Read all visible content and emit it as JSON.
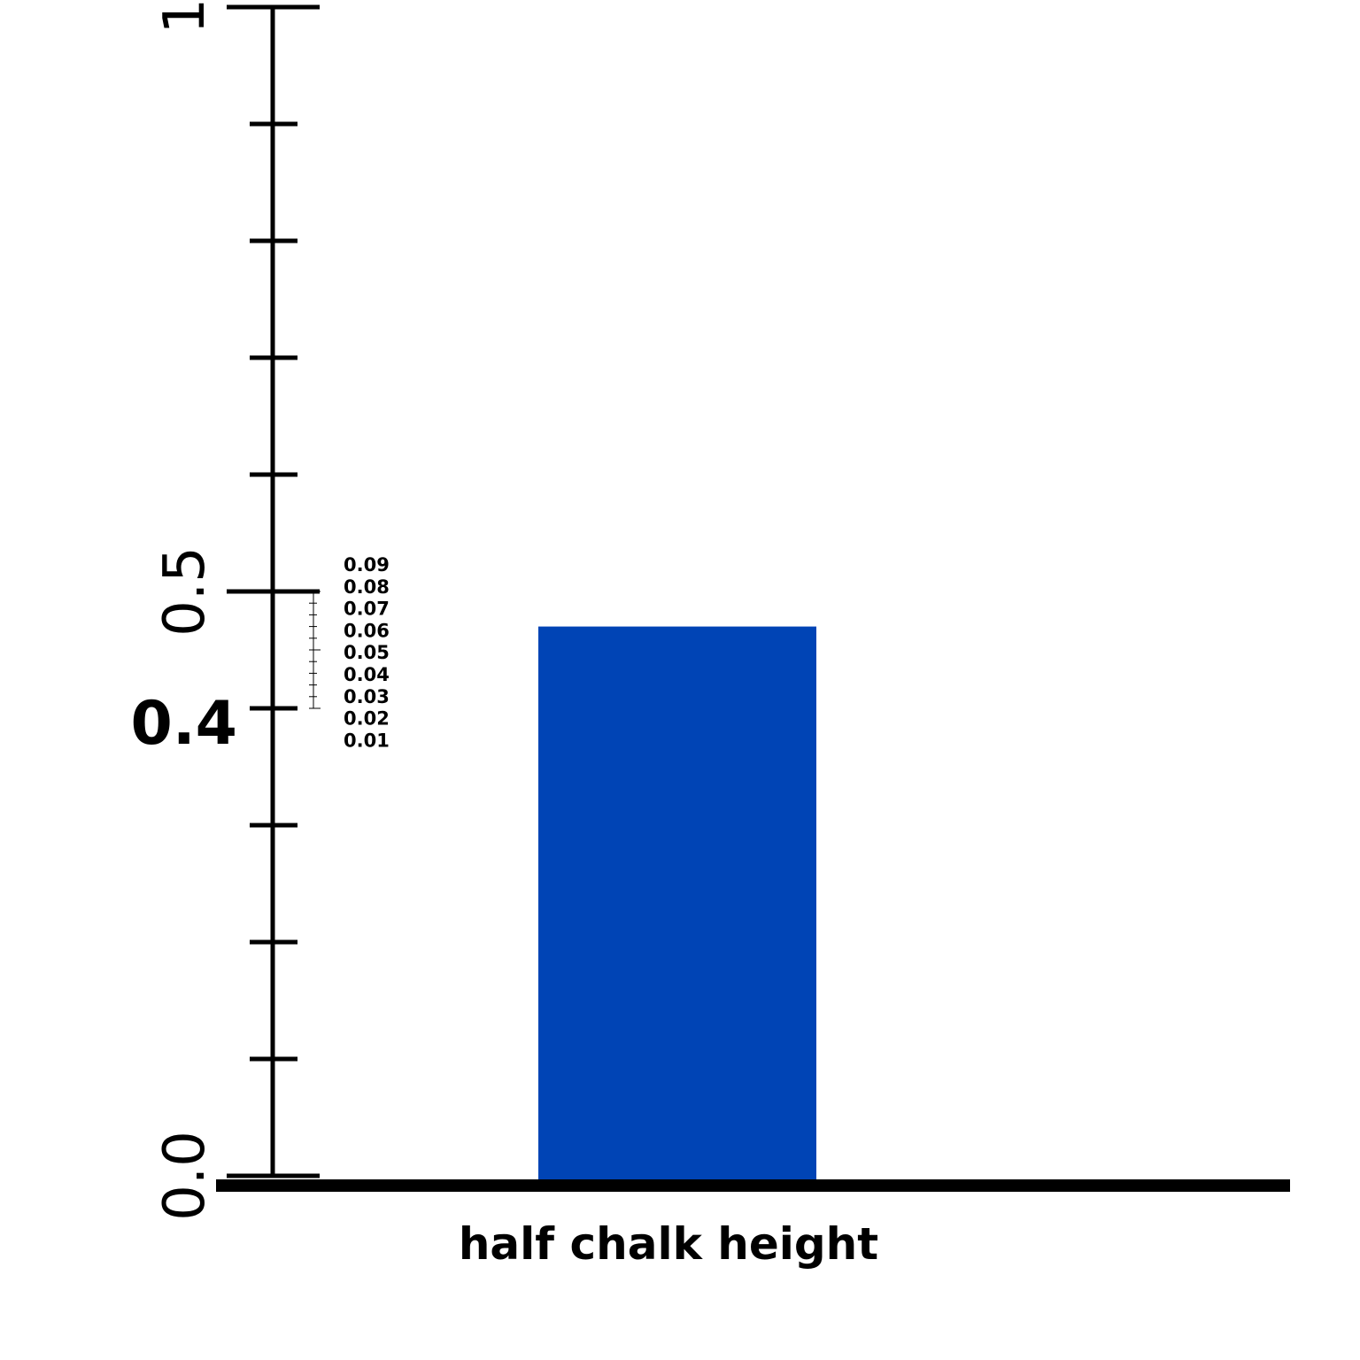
{
  "chart_data": {
    "type": "bar",
    "categories": [
      "half chalk height"
    ],
    "values": [
      0.47
    ],
    "bar_color": "#0044b5",
    "xlabel": "",
    "ylabel": "",
    "ylim": [
      0,
      1.0
    ],
    "y_ticks": [
      0.0,
      0.1,
      0.2,
      0.3,
      0.4,
      0.5,
      0.6,
      0.7,
      0.8,
      0.9,
      1.0
    ],
    "y_tick_labels": [
      {
        "value": 0.0,
        "text": "0.0"
      },
      {
        "value": 0.5,
        "text": "0.5"
      },
      {
        "value": 1.0,
        "text": "1."
      }
    ],
    "highlight_label": {
      "value": 0.4,
      "text": "0.4"
    },
    "mini_scale": {
      "range": [
        0.4,
        0.5
      ],
      "labels": [
        "0.09",
        "0.08",
        "0.07",
        "0.06",
        "0.05",
        "0.04",
        "0.03",
        "0.02",
        "0.01"
      ]
    },
    "grid": false
  }
}
